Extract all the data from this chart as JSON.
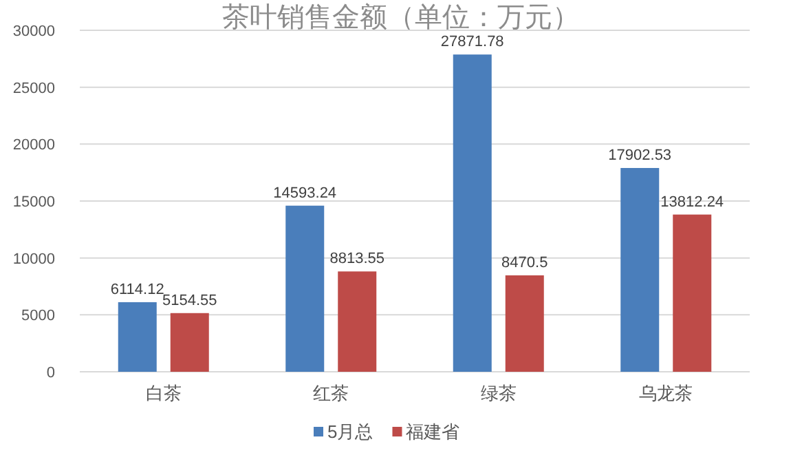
{
  "chart_data": {
    "type": "bar",
    "title": "茶叶销售金额（单位：万元）",
    "categories": [
      "白茶",
      "红茶",
      "绿茶",
      "乌龙茶"
    ],
    "series": [
      {
        "name": "5月总",
        "color": "#4a7ebb",
        "values": [
          6114.12,
          14593.24,
          27871.78,
          17902.53
        ]
      },
      {
        "name": "福建省",
        "color": "#be4b48",
        "values": [
          5154.55,
          8813.55,
          8470.5,
          13812.24
        ]
      }
    ],
    "ylim": [
      0,
      30000
    ],
    "yticks": [
      0,
      5000,
      10000,
      15000,
      20000,
      25000,
      30000
    ],
    "grid": "y",
    "legend": "bottom",
    "data_labels": true
  }
}
